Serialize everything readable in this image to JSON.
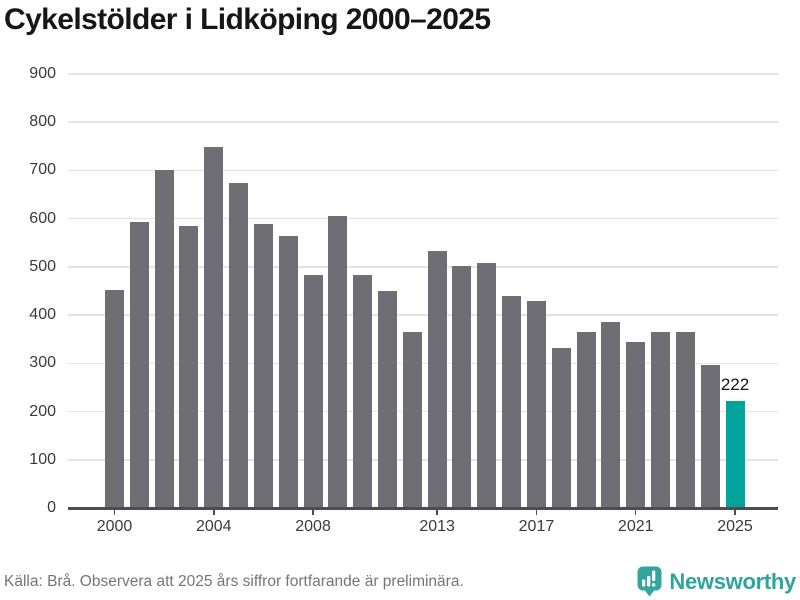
{
  "title": "Cykelstölder i Lidköping 2000–2025",
  "chart_data": {
    "type": "bar",
    "title": "Cykelstölder i Lidköping 2000–2025",
    "x": [
      2000,
      2001,
      2002,
      2003,
      2004,
      2005,
      2006,
      2007,
      2008,
      2009,
      2010,
      2011,
      2012,
      2013,
      2014,
      2015,
      2016,
      2017,
      2018,
      2019,
      2020,
      2021,
      2022,
      2023,
      2024,
      2025
    ],
    "values": [
      452,
      594,
      700,
      585,
      748,
      675,
      590,
      565,
      483,
      605,
      483,
      451,
      366,
      532,
      501,
      509,
      440,
      430,
      331,
      365,
      385,
      344,
      365,
      365,
      297,
      222
    ],
    "highlight_x": 2025,
    "highlight_value_label": "222",
    "x_tick_labels": [
      "2000",
      "2004",
      "2008",
      "2013",
      "2017",
      "2021",
      "2025"
    ],
    "y_ticks": [
      0,
      100,
      200,
      300,
      400,
      500,
      600,
      700,
      800,
      900
    ],
    "ylim": [
      0,
      900
    ],
    "xlabel": "",
    "ylabel": "",
    "grid": true,
    "legend": "none",
    "colors": {
      "bar": "#6F6E74",
      "highlight": "#00A49C"
    }
  },
  "footer": {
    "source_note": "Källa: Brå. Observera att 2025 års siffror fortfarande är preliminära.",
    "brand": "Newsworthy"
  },
  "theme": {
    "title_color": "#161616",
    "gridline_color": "#E4E4E4",
    "axis_color": "#4C4C52",
    "tick_label_color": "#3B3B3B",
    "footer_text_color": "#74747E",
    "logo_teal": "#2FA49B",
    "logo_badge_teal": "#34A59D"
  }
}
